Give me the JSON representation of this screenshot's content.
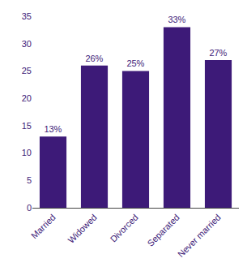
{
  "chart_data": {
    "type": "bar",
    "categories": [
      "Married",
      "Widowed",
      "Divorced",
      "Separated",
      "Never married"
    ],
    "values": [
      13,
      26,
      25,
      33,
      27
    ],
    "value_labels": [
      "13%",
      "26%",
      "25%",
      "33%",
      "27%"
    ],
    "color": "#3d1a78",
    "ylim": [
      0,
      35
    ],
    "yticks": [
      0,
      5,
      10,
      15,
      20,
      25,
      30,
      35
    ],
    "grid": false,
    "data_labels": true
  }
}
